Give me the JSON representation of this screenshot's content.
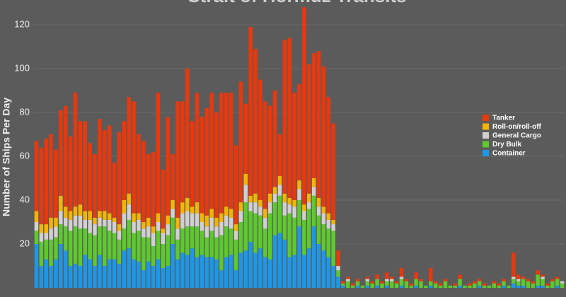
{
  "chart_data": {
    "type": "stacked_bar",
    "title": "Strait of Hormuz Transits",
    "y_label": "Number of Ships Per Day",
    "categories": [
      null,
      null,
      null,
      null,
      null,
      null,
      null,
      null,
      null,
      null,
      null,
      null,
      null,
      null,
      null,
      null,
      null,
      null,
      null,
      null,
      null,
      null,
      null,
      null,
      null,
      null,
      null,
      null,
      null,
      null,
      null,
      null,
      null,
      null,
      null,
      null,
      null,
      null,
      null,
      null,
      null,
      null,
      null,
      null,
      null,
      null,
      null,
      null,
      null,
      null,
      null,
      null,
      null,
      null,
      null,
      null,
      null,
      null,
      null,
      null,
      null,
      null,
      null,
      null,
      null,
      null,
      null,
      null,
      null,
      null,
      null,
      null,
      null,
      null,
      null,
      null,
      null,
      null,
      null,
      null,
      null,
      null,
      null,
      null,
      null,
      null,
      null,
      null,
      null,
      null,
      null,
      null,
      null,
      null,
      null,
      null,
      null,
      null,
      null,
      null,
      null,
      null,
      null,
      null,
      null,
      null,
      null,
      null,
      null
    ],
    "series": [
      {
        "name": "Container",
        "color": "#1e97e6",
        "values": [
          20,
          10,
          13,
          10,
          13,
          20,
          17,
          10,
          11,
          10,
          15,
          13,
          10,
          15,
          10,
          13,
          13,
          11,
          17,
          18,
          13,
          12,
          8,
          12,
          10,
          13,
          9,
          10,
          20,
          13,
          16,
          15,
          18,
          14,
          15,
          14,
          14,
          13,
          8,
          14,
          15,
          8,
          16,
          17,
          21,
          16,
          18,
          14,
          13,
          24,
          25,
          22,
          14,
          15,
          28,
          15,
          18,
          28,
          20,
          17,
          14,
          10,
          5,
          1,
          0,
          0,
          1,
          0,
          1,
          0,
          1,
          0,
          1,
          0,
          0,
          1,
          0,
          0,
          1,
          0,
          0,
          1,
          0,
          0,
          0,
          0,
          0,
          1,
          0,
          0,
          0,
          1,
          0,
          0,
          0,
          0,
          1,
          0,
          2,
          1,
          1,
          0,
          0,
          1,
          1,
          0,
          0,
          1,
          0
        ]
      },
      {
        "name": "Dry Bulk",
        "color": "#5ec92f",
        "values": [
          6,
          11,
          9,
          12,
          10,
          9,
          11,
          16,
          17,
          17,
          12,
          12,
          14,
          13,
          18,
          13,
          12,
          11,
          10,
          13,
          12,
          14,
          15,
          11,
          9,
          13,
          11,
          14,
          12,
          9,
          11,
          13,
          10,
          14,
          11,
          9,
          12,
          10,
          16,
          14,
          12,
          14,
          14,
          22,
          14,
          18,
          15,
          13,
          21,
          15,
          17,
          11,
          20,
          17,
          12,
          16,
          18,
          14,
          13,
          12,
          13,
          16,
          3,
          1,
          3,
          1,
          2,
          1,
          2,
          2,
          3,
          2,
          2,
          3,
          2,
          3,
          3,
          1,
          3,
          3,
          1,
          2,
          2,
          1,
          3,
          1,
          1,
          3,
          1,
          1,
          2,
          2,
          1,
          1,
          2,
          1,
          2,
          1,
          2,
          2,
          3,
          3,
          2,
          5,
          3,
          1,
          3,
          3,
          2
        ]
      },
      {
        "name": "General Cargo",
        "color": "#d0d0d0",
        "values": [
          4,
          4,
          3,
          5,
          5,
          6,
          4,
          5,
          5,
          6,
          4,
          6,
          5,
          4,
          3,
          5,
          5,
          4,
          7,
          7,
          5,
          5,
          4,
          5,
          6,
          4,
          5,
          5,
          4,
          5,
          7,
          7,
          6,
          6,
          4,
          5,
          6,
          5,
          6,
          5,
          5,
          4,
          5,
          8,
          4,
          5,
          4,
          5,
          5,
          4,
          5,
          6,
          4,
          5,
          5,
          4,
          3,
          4,
          4,
          5,
          4,
          3,
          2,
          0,
          1,
          0,
          0,
          0,
          1,
          0,
          0,
          0,
          1,
          1,
          0,
          1,
          0,
          0,
          0,
          0,
          0,
          0,
          0,
          0,
          0,
          0,
          0,
          0,
          0,
          0,
          0,
          0,
          0,
          0,
          0,
          0,
          0,
          0,
          1,
          1,
          0,
          0,
          0,
          0,
          1,
          0,
          0,
          0,
          1
        ]
      },
      {
        "name": "Roll-on/roll-off",
        "color": "#f5b400",
        "values": [
          5,
          4,
          4,
          5,
          4,
          7,
          5,
          4,
          4,
          5,
          4,
          4,
          3,
          3,
          4,
          3,
          2,
          3,
          6,
          5,
          4,
          3,
          3,
          4,
          3,
          4,
          2,
          4,
          4,
          5,
          5,
          6,
          3,
          5,
          4,
          5,
          4,
          4,
          4,
          4,
          4,
          3,
          4,
          5,
          3,
          4,
          3,
          4,
          4,
          3,
          4,
          4,
          3,
          3,
          4,
          3,
          4,
          4,
          4,
          3,
          3,
          2,
          0,
          0,
          0,
          0,
          0,
          0,
          0,
          0,
          0,
          0,
          0,
          0,
          0,
          0,
          0,
          0,
          0,
          0,
          0,
          0,
          0,
          0,
          0,
          0,
          0,
          0,
          0,
          0,
          0,
          0,
          0,
          0,
          0,
          0,
          0,
          0,
          0,
          0,
          0,
          0,
          0,
          0,
          0,
          0,
          0,
          0,
          0
        ]
      },
      {
        "name": "Tanker",
        "color": "#e8380d",
        "values": [
          32,
          35,
          39,
          38,
          31,
          39,
          46,
          34,
          52,
          38,
          41,
          31,
          29,
          42,
          37,
          40,
          25,
          42,
          36,
          44,
          51,
          36,
          37,
          29,
          34,
          55,
          27,
          45,
          21,
          53,
          46,
          59,
          39,
          50,
          44,
          49,
          53,
          48,
          55,
          52,
          53,
          36,
          55,
          32,
          77,
          66,
          55,
          49,
          40,
          44,
          19,
          70,
          73,
          49,
          44,
          90,
          59,
          57,
          67,
          64,
          53,
          44,
          7,
          1,
          1,
          1,
          1,
          0,
          1,
          1,
          2,
          1,
          3,
          1,
          1,
          4,
          1,
          1,
          3,
          1,
          0,
          6,
          1,
          1,
          1,
          0,
          1,
          2,
          0,
          1,
          1,
          1,
          1,
          0,
          1,
          1,
          1,
          0,
          11,
          2,
          1,
          1,
          1,
          2,
          1,
          1,
          1,
          1,
          0
        ]
      }
    ],
    "ylim": [
      0,
      130
    ],
    "yticks": [
      20,
      40,
      60,
      80,
      100,
      120
    ],
    "grid": true
  }
}
